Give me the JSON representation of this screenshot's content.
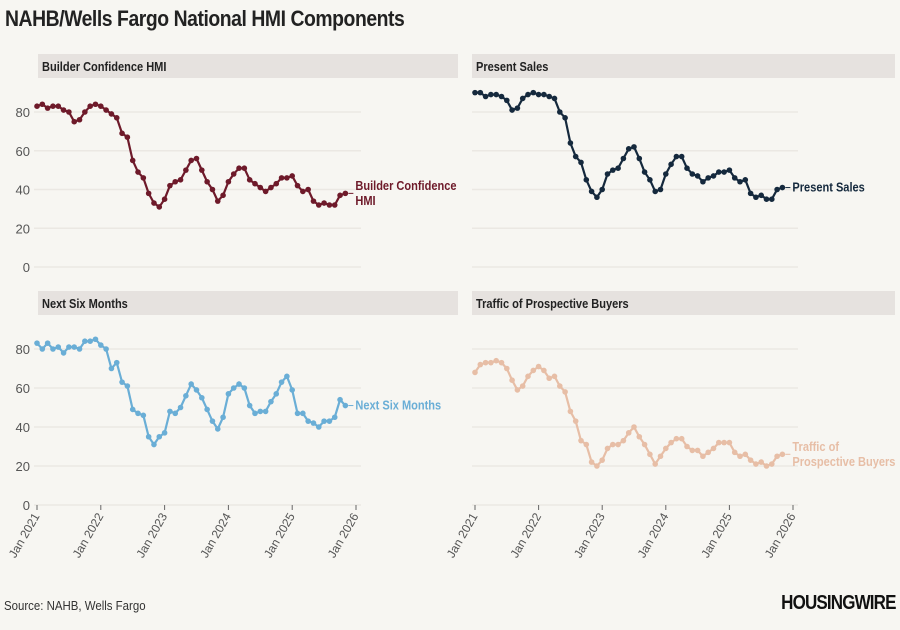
{
  "title": "NAHB/Wells Fargo National HMI Components",
  "source": "Source: NAHB, Wells Fargo",
  "logo": "HOUSINGWIRE",
  "colors": {
    "background": "#f7f6f2",
    "header_bar": "#e6e2df",
    "grid": "#ebe8e3"
  },
  "chart_data": [
    {
      "type": "line",
      "title": "Builder Confidence HMI",
      "series": [
        {
          "name": "Builder Confidence HMI",
          "color": "#6e1a2a",
          "start": "2021-01",
          "frequency": "monthly",
          "values": [
            83,
            84,
            82,
            83,
            83,
            81,
            80,
            75,
            76,
            80,
            83,
            84,
            83,
            81,
            79,
            77,
            69,
            67,
            55,
            49,
            46,
            38,
            33,
            31,
            35,
            42,
            44,
            45,
            50,
            55,
            56,
            50,
            44,
            40,
            34,
            37,
            44,
            48,
            51,
            51,
            45,
            43,
            41,
            39,
            41,
            43,
            46,
            46,
            47,
            42,
            39,
            40,
            34,
            32,
            33,
            32,
            32,
            37,
            38
          ]
        }
      ],
      "label_lines": [
        "Builder Confidence",
        "HMI"
      ],
      "ylim": [
        0,
        90
      ],
      "yticks": [
        0,
        20,
        40,
        60,
        80
      ],
      "xticks": [
        "Jan 2021",
        "Jan 2022",
        "Jan 2023",
        "Jan 2024",
        "Jan 2025",
        "Jan 2026"
      ],
      "show_yticks": true,
      "grid": true
    },
    {
      "type": "line",
      "title": "Present Sales",
      "series": [
        {
          "name": "Present Sales",
          "color": "#15293d",
          "start": "2021-01",
          "frequency": "monthly",
          "values": [
            90,
            90,
            88,
            89,
            89,
            88,
            86,
            81,
            82,
            87,
            89,
            90,
            89,
            89,
            88,
            87,
            80,
            77,
            64,
            57,
            54,
            45,
            39,
            36,
            40,
            48,
            50,
            51,
            56,
            61,
            62,
            56,
            49,
            45,
            39,
            40,
            48,
            53,
            57,
            57,
            51,
            48,
            47,
            44,
            46,
            47,
            49,
            49,
            50,
            46,
            44,
            45,
            38,
            36,
            37,
            35,
            35,
            40,
            41
          ]
        }
      ],
      "label_lines": [
        "Present Sales"
      ],
      "ylim": [
        0,
        90
      ],
      "yticks": [
        0,
        20,
        40,
        60,
        80
      ],
      "xticks": [
        "Jan 2021",
        "Jan 2022",
        "Jan 2023",
        "Jan 2024",
        "Jan 2025",
        "Jan 2026"
      ],
      "show_yticks": false,
      "grid": true
    },
    {
      "type": "line",
      "title": "Next Six Months",
      "series": [
        {
          "name": "Next Six Months",
          "color": "#6aaed6",
          "start": "2021-01",
          "frequency": "monthly",
          "values": [
            83,
            80,
            83,
            80,
            81,
            78,
            81,
            81,
            80,
            84,
            84,
            85,
            82,
            80,
            70,
            73,
            63,
            61,
            49,
            47,
            46,
            35,
            31,
            35,
            37,
            48,
            47,
            50,
            56,
            62,
            59,
            55,
            49,
            43,
            39,
            45,
            57,
            60,
            62,
            60,
            51,
            47,
            48,
            48,
            53,
            57,
            63,
            66,
            59,
            47,
            47,
            43,
            42,
            40,
            43,
            43,
            45,
            54,
            51
          ]
        }
      ],
      "label_lines": [
        "Next Six Months"
      ],
      "ylim": [
        0,
        90
      ],
      "yticks": [
        0,
        20,
        40,
        60,
        80
      ],
      "xticks": [
        "Jan 2021",
        "Jan 2022",
        "Jan 2023",
        "Jan 2024",
        "Jan 2025",
        "Jan 2026"
      ],
      "show_yticks": true,
      "grid": true
    },
    {
      "type": "line",
      "title": "Traffic of Prospective Buyers",
      "series": [
        {
          "name": "Traffic of Prospective Buyers",
          "color": "#e7bea6",
          "start": "2021-01",
          "frequency": "monthly",
          "values": [
            68,
            72,
            73,
            73,
            74,
            73,
            70,
            64,
            59,
            61,
            66,
            69,
            71,
            69,
            65,
            66,
            61,
            58,
            48,
            43,
            33,
            31,
            22,
            20,
            23,
            29,
            31,
            31,
            33,
            37,
            40,
            35,
            31,
            26,
            21,
            25,
            29,
            32,
            34,
            34,
            30,
            28,
            28,
            25,
            27,
            29,
            32,
            32,
            32,
            27,
            25,
            26,
            23,
            21,
            22,
            20,
            21,
            25,
            26
          ]
        }
      ],
      "label_lines": [
        "Traffic of",
        "Prospective Buyers"
      ],
      "ylim": [
        0,
        90
      ],
      "yticks": [
        0,
        20,
        40,
        60,
        80
      ],
      "xticks": [
        "Jan 2021",
        "Jan 2022",
        "Jan 2023",
        "Jan 2024",
        "Jan 2025",
        "Jan 2026"
      ],
      "show_yticks": false,
      "grid": true
    }
  ]
}
